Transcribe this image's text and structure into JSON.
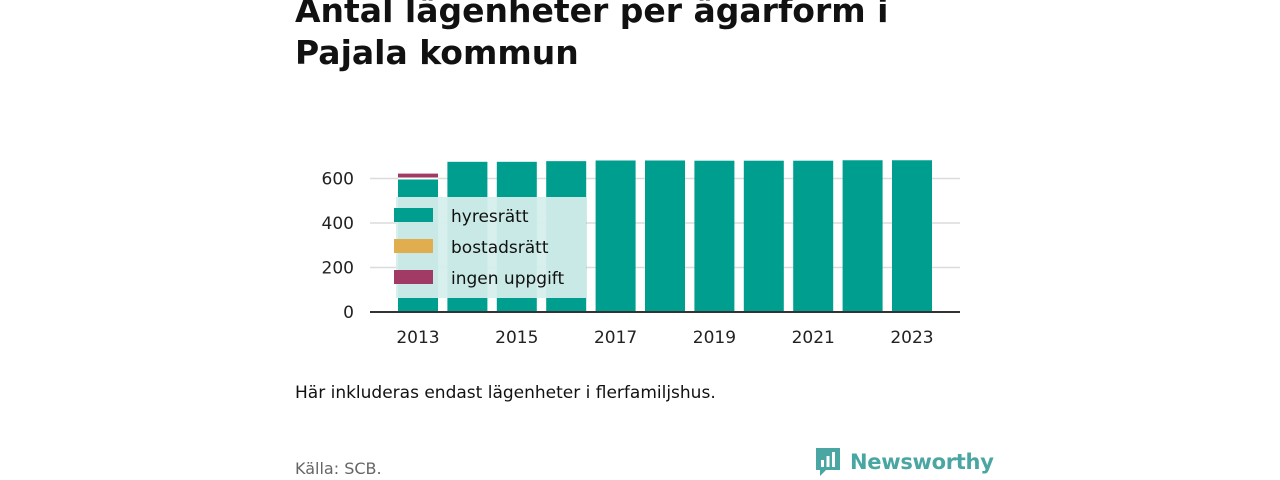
{
  "header": {
    "title": "Antal lägenheter per ägarform i Pajala kommun"
  },
  "footer": {
    "note": "Här inkluderas endast lägenheter i flerfamiljshus.",
    "source": "Källa: SCB.",
    "brand": "Newsworthy"
  },
  "colors": {
    "hyresratt": "#009e8f",
    "bostadsratt": "#e0ad4f",
    "ingen_uppgift": "#a23a66",
    "legend_panel": "#d4eeec",
    "grid": "#dcdcdc",
    "axis": "#333333",
    "brand": "#4aa6a2"
  },
  "chart_data": {
    "type": "bar",
    "stacked": true,
    "title": "Antal lägenheter per ägarform i Pajala kommun",
    "xlabel": "",
    "ylabel": "",
    "categories": [
      "2013",
      "2014",
      "2015",
      "2016",
      "2017",
      "2018",
      "2019",
      "2020",
      "2021",
      "2022",
      "2023"
    ],
    "x_tick_labels": [
      "2013",
      "2015",
      "2017",
      "2019",
      "2021",
      "2023"
    ],
    "y_ticks": [
      0,
      200,
      400,
      600
    ],
    "ylim": [
      0,
      700
    ],
    "grid": true,
    "legend_position": "inside-top-left",
    "series": [
      {
        "name": "hyresrätt",
        "color": "#009e8f",
        "values": [
          600,
          675,
          675,
          678,
          681,
          681,
          680,
          680,
          680,
          682,
          682
        ]
      },
      {
        "name": "bostadsrätt",
        "color": "#e0ad4f",
        "values": [
          0,
          0,
          0,
          0,
          0,
          0,
          0,
          0,
          0,
          0,
          0
        ]
      },
      {
        "name": "ingen uppgift",
        "color": "#a23a66",
        "values": [
          22,
          0,
          0,
          0,
          0,
          0,
          0,
          0,
          0,
          0,
          0
        ]
      }
    ]
  }
}
